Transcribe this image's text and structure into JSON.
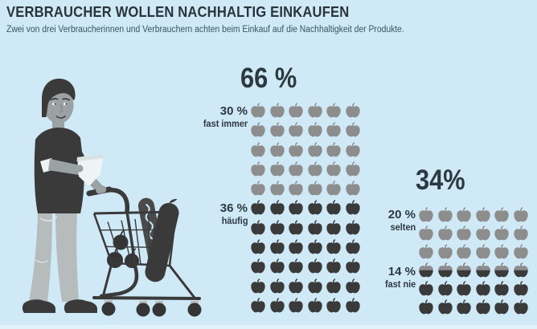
{
  "header": {
    "title": "VERBRAUCHER WOLLEN NACHHALTIG EINKAUFEN",
    "subtitle": "Zwei von drei Verbraucherinnen und Verbrauchern achten beim Einkauf auf die Nachhaltigkeit der Produkte."
  },
  "illustration": {
    "alt": "Mann mit Einkaufszettel schiebt Einkaufswagen mit Baguettes und Äpfeln"
  },
  "colors": {
    "background": "#cfe9f6",
    "heading_text": "#2a343b",
    "subtitle_text": "#375561",
    "label_text": "#2c3940",
    "apple_gray": "#8d8d8d",
    "apple_dark": "#3a3a3a",
    "skin": "#9aa2a4",
    "pants": "#b6bbbc",
    "paper": "#eef3f4"
  },
  "chart_data": {
    "type": "pictogram",
    "title": "VERBRAUCHER WOLLEN NACHHALTIG EINKAUFEN",
    "subtitle": "Zwei von drei Verbraucherinnen und Verbrauchern achten beim Einkauf auf die Nachhaltigkeit der Produkte.",
    "icon": "apple",
    "icons_per_row": 6,
    "icon_unit_percent": 1,
    "groups": [
      {
        "total_label": "66 %",
        "total_percent": 66,
        "segments": [
          {
            "percent_label": "30 %",
            "label": "fast immer",
            "value": 30,
            "color": "#8d8d8d"
          },
          {
            "percent_label": "36 %",
            "label": "häufig",
            "value": 36,
            "color": "#3a3a3a"
          }
        ]
      },
      {
        "total_label": "34%",
        "total_percent": 34,
        "segments": [
          {
            "percent_label": "20 %",
            "label": "selten",
            "value": 20,
            "color": "#8d8d8d"
          },
          {
            "percent_label": "14 %",
            "label": "fast nie",
            "value": 14,
            "color": "#3a3a3a"
          }
        ]
      }
    ]
  }
}
